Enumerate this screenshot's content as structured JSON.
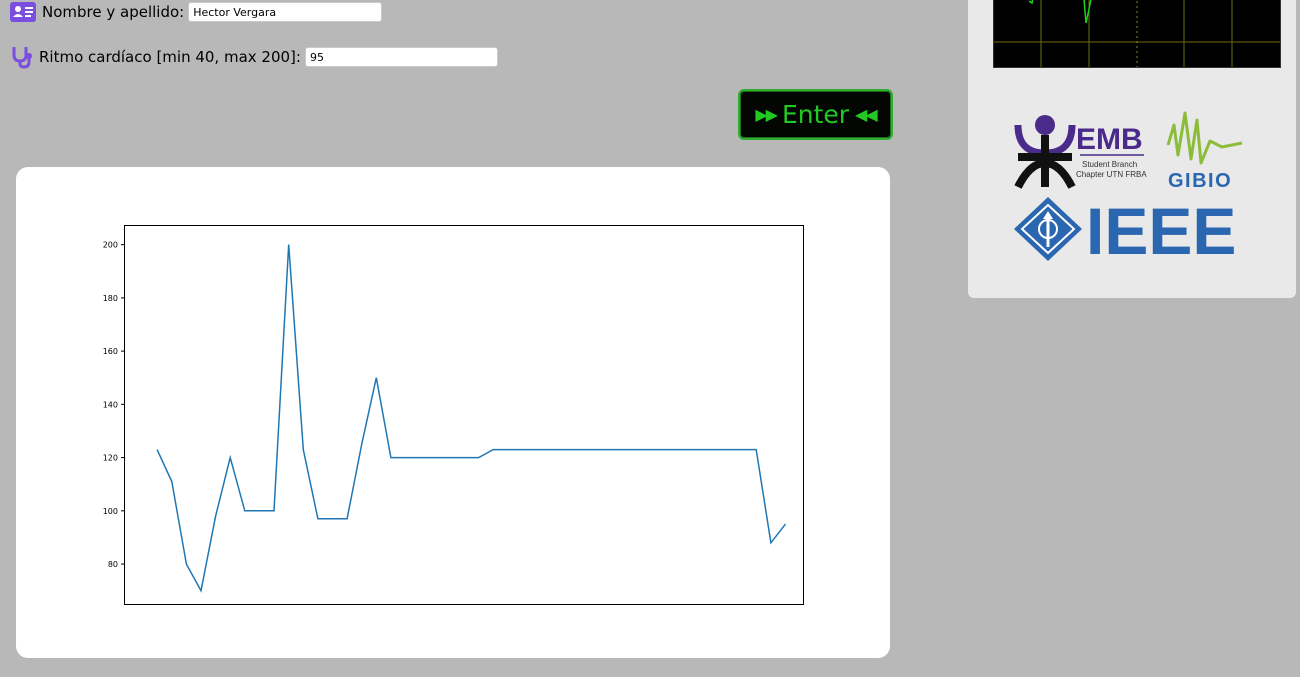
{
  "form": {
    "name_label": "Nombre y apellido:",
    "name_value": "Hector Vergara",
    "hr_label": "Ritmo cardíaco [min 40, max 200]:",
    "hr_value": "95"
  },
  "button": {
    "label": "Enter",
    "left_arrows": "▶▶",
    "right_arrows": "◀◀"
  },
  "logos": {
    "emb_title": "EMB",
    "emb_sub1": "Student Branch",
    "emb_sub2": "Chapter UTN FRBA",
    "gibio": "GIBIO",
    "ieee": "IEEE"
  },
  "icons": {
    "name_icon": "id-card-icon",
    "hr_icon": "stethoscope-icon"
  },
  "colors": {
    "background": "#b8b8b8",
    "line": "#1f77b4",
    "button_bg": "#030603",
    "button_text": "#22c922",
    "ecg_trace": "#19d619",
    "icon_purple": "#7a4fe0",
    "emb_purple": "#4a2a8a",
    "gibio_green": "#8cbd3a",
    "ieee_blue": "#2a67b0"
  },
  "chart_data": {
    "type": "line",
    "y": [
      123,
      111,
      80,
      70,
      98,
      120,
      100,
      100,
      100,
      200,
      123,
      97,
      97,
      97,
      125,
      150,
      120,
      120,
      120,
      120,
      120,
      120,
      120,
      123,
      123,
      123,
      123,
      123,
      123,
      123,
      123,
      123,
      123,
      123,
      123,
      123,
      123,
      123,
      123,
      123,
      123,
      123,
      88,
      95
    ],
    "yticks": [
      80,
      100,
      120,
      140,
      160,
      180,
      200
    ],
    "ylim": [
      65,
      207
    ],
    "xlim": [
      -2.2,
      44.2
    ],
    "grid": false
  }
}
